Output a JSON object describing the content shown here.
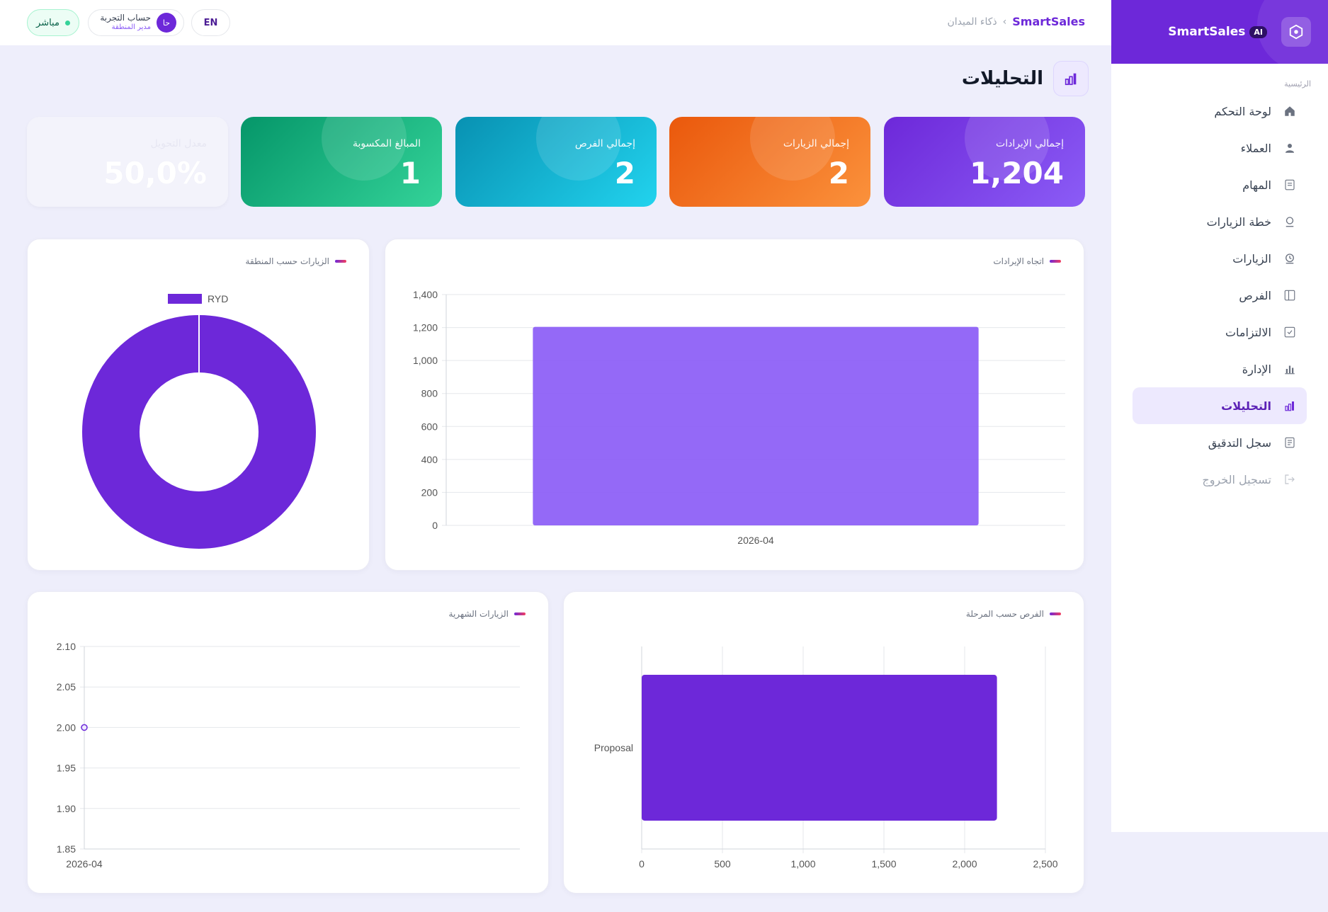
{
  "sidebar": {
    "brand": "SmartSales",
    "brand_badge": "AI",
    "section_label": "الرئيسية",
    "items": [
      {
        "label": "لوحة التحكم",
        "icon": "home-icon"
      },
      {
        "label": "العملاء",
        "icon": "user-icon"
      },
      {
        "label": "المهام",
        "icon": "list-icon"
      },
      {
        "label": "خطة الزيارات",
        "icon": "pin-icon"
      },
      {
        "label": "الزيارات",
        "icon": "clock-icon"
      },
      {
        "label": "الفرص",
        "icon": "columns-icon"
      },
      {
        "label": "الالتزامات",
        "icon": "check-square-icon"
      },
      {
        "label": "الإدارة",
        "icon": "bar-chart-icon"
      },
      {
        "label": "التحليلات",
        "icon": "analytics-icon"
      },
      {
        "label": "سجل التدقيق",
        "icon": "document-icon"
      },
      {
        "label": "تسجيل الخروج",
        "icon": "logout-icon"
      }
    ]
  },
  "topbar": {
    "breadcrumb_brand": "SmartSales",
    "breadcrumb_page": "ذكاء الميدان",
    "status": "مباشر",
    "user_name": "حساب التجربة",
    "user_role": "مدير المنطقة",
    "user_initials": "حا",
    "lang": "EN"
  },
  "page": {
    "title": "التحليلات"
  },
  "kpis": {
    "revenue": {
      "label": "إجمالي الإيرادات",
      "value": "1,204"
    },
    "visits": {
      "label": "إجمالي الزيارات",
      "value": "2"
    },
    "opportunities": {
      "label": "إجمالي الفرص",
      "value": "2"
    },
    "won": {
      "label": "المبالغ المكسوبة",
      "value": "1"
    },
    "conversion": {
      "label": "معدل التحويل",
      "value": "50,0%"
    }
  },
  "colors": {
    "accent": "#6d28d9",
    "bar": "#8b5cf6"
  },
  "chart_data": [
    {
      "type": "bar",
      "title": "اتجاه الإيرادات",
      "categories": [
        "2026-04"
      ],
      "values": [
        1204
      ],
      "ylim": [
        0,
        1400
      ],
      "yticks": [
        0,
        200,
        400,
        600,
        800,
        1000,
        1200,
        1400
      ],
      "grid": true
    },
    {
      "type": "pie",
      "title": "الزيارات حسب المنطقة",
      "labels": [
        "RYD"
      ],
      "values": [
        2
      ],
      "legend": "top"
    },
    {
      "type": "bar",
      "orientation": "horizontal",
      "title": "الفرص حسب المرحلة",
      "categories": [
        "Proposal"
      ],
      "values": [
        2200
      ],
      "xlim": [
        0,
        2500
      ],
      "xticks": [
        0,
        500,
        1000,
        1500,
        2000,
        2500
      ],
      "grid": true
    },
    {
      "type": "line",
      "title": "الزيارات الشهرية",
      "x": [
        "2026-04"
      ],
      "values": [
        2
      ],
      "ylim": [
        1.85,
        2.1
      ],
      "yticks": [
        1.85,
        1.9,
        1.95,
        2.0,
        2.05,
        2.1
      ],
      "grid": true
    }
  ]
}
